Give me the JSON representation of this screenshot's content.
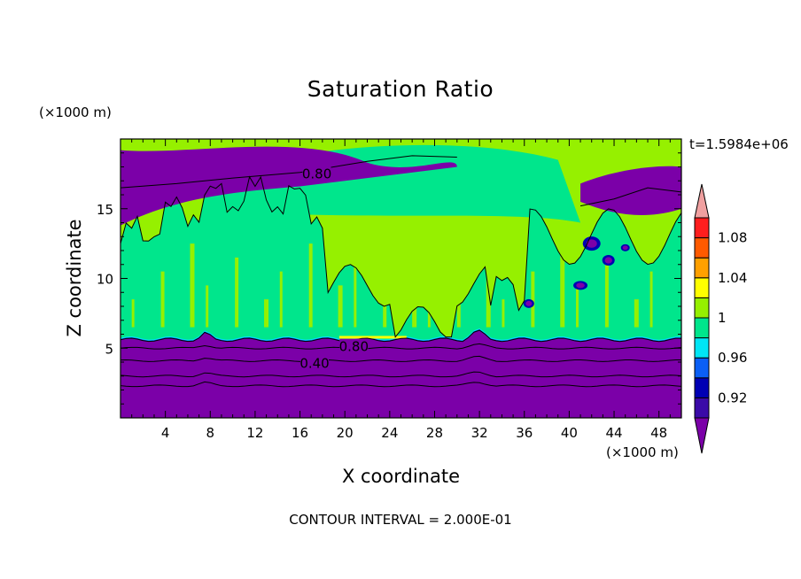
{
  "chart_data": {
    "type": "heatmap",
    "title": "Saturation Ratio",
    "xlabel": "X coordinate",
    "ylabel": "Z coordinate",
    "x_unit": "(×1000 m)",
    "y_unit": "(×1000 m)",
    "time_label": "t=1.5984e+06",
    "footnote": "CONTOUR INTERVAL = 2.000E-01",
    "xlim": [
      0,
      50
    ],
    "ylim": [
      0,
      20
    ],
    "x_ticks": [
      4,
      8,
      12,
      16,
      20,
      24,
      28,
      32,
      36,
      40,
      44,
      48
    ],
    "y_ticks": [
      5,
      10,
      15
    ],
    "colorbar": {
      "labels": [
        "0.92",
        "0.96",
        "1",
        "1.04",
        "1.08"
      ],
      "levels": [
        0.9,
        0.92,
        0.94,
        0.96,
        0.98,
        1.0,
        1.02,
        1.04,
        1.06,
        1.08,
        1.1
      ],
      "colors": [
        "#7b00a8",
        "#3a0aa8",
        "#0000b4",
        "#0a5ff5",
        "#00e6f5",
        "#00e68c",
        "#96f000",
        "#ffff00",
        "#ffa000",
        "#ff5a00",
        "#ff1e1e",
        "#f0a0a0"
      ]
    },
    "contour_labels": [
      {
        "value": "0.80",
        "x": 17.5,
        "y": 17.5
      },
      {
        "value": "0.80",
        "x": 20.8,
        "y": 5.1
      },
      {
        "value": "0.40",
        "x": 17.3,
        "y": 3.9
      }
    ],
    "regions": [
      {
        "level": "< 0.9",
        "z_range": [
          0,
          5.6
        ],
        "description_color": "#7b00a8"
      },
      {
        "level": "0.98-1.0",
        "z_range": [
          5.6,
          18
        ],
        "description_color": "#00e68c"
      },
      {
        "level": "1.0-1.02",
        "z_range": [
          5.6,
          20
        ],
        "description_color": "#96f000"
      },
      {
        "level": "< 0.9",
        "z_range": [
          15,
          19
        ],
        "description_color": "#7b00a8"
      }
    ]
  }
}
